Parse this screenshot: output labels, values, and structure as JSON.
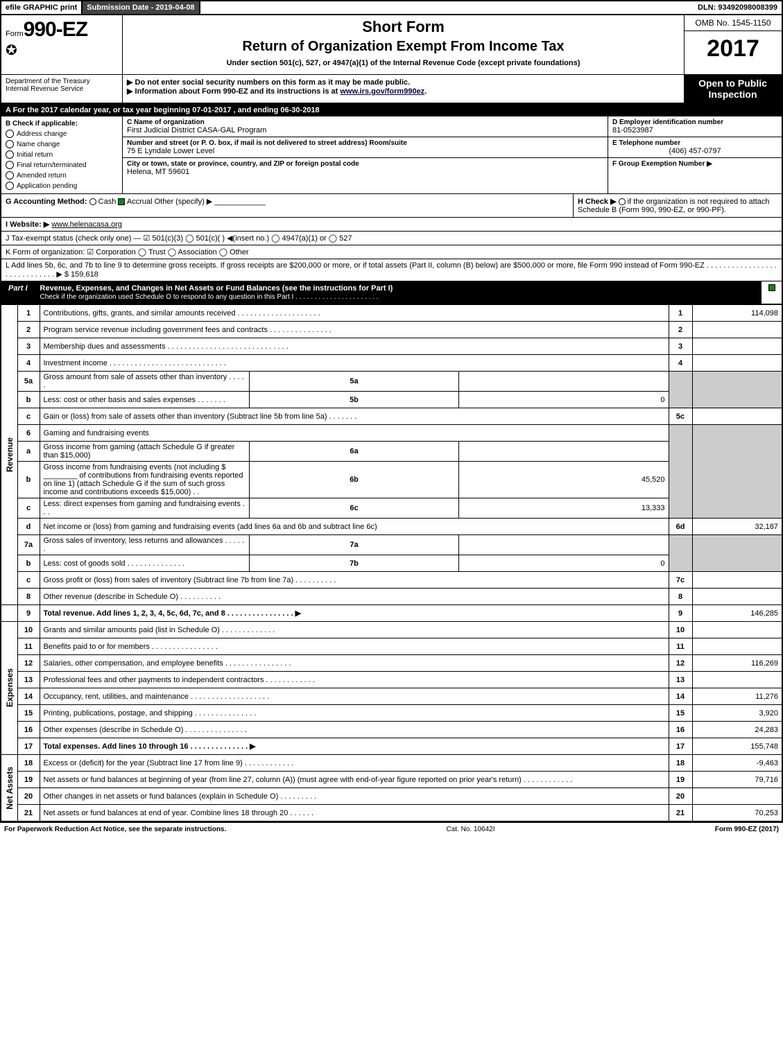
{
  "topbar": {
    "efile": "efile GRAPHIC print",
    "sub_label": "Submission Date - 2019-04-08",
    "dln": "DLN: 93492098008399"
  },
  "header": {
    "form_prefix": "Form",
    "form_no": "990-EZ",
    "short": "Short Form",
    "title": "Return of Organization Exempt From Income Tax",
    "sub1": "Under section 501(c), 527, or 4947(a)(1) of the Internal Revenue Code (except private foundations)",
    "sub2": "▶ Do not enter social security numbers on this form as it may be made public.",
    "sub3_pre": "▶ Information about Form 990-EZ and its instructions is at ",
    "sub3_link": "www.irs.gov/form990ez",
    "omb": "OMB No. 1545-1150",
    "year": "2017",
    "open1": "Open to Public",
    "open2": "Inspection",
    "dept1": "Department of the Treasury",
    "dept2": "Internal Revenue Service"
  },
  "A": {
    "text_pre": "A  For the 2017 calendar year, or tax year beginning ",
    "begin": "07-01-2017",
    "mid": ", and ending ",
    "end": "06-30-2018"
  },
  "B": {
    "label": "B  Check if applicable:",
    "items": [
      "Address change",
      "Name change",
      "Initial return",
      "Final return/terminated",
      "Amended return",
      "Application pending"
    ]
  },
  "C": {
    "label": "C Name of organization",
    "name": "First Judicial District CASA-GAL Program",
    "addr_label": "Number and street (or P. O. box, if mail is not delivered to street address)   Room/suite",
    "addr": "75 E Lyndale Lower Level",
    "city_label": "City or town, state or province, country, and ZIP or foreign postal code",
    "city": "Helena, MT  59601"
  },
  "D": {
    "label": "D Employer identification number",
    "val": "81-0523987"
  },
  "E": {
    "label": "E Telephone number",
    "val": "(406) 457-0797"
  },
  "F": {
    "label": "F Group Exemption Number  ▶"
  },
  "G": {
    "label": "G Accounting Method:",
    "cash": "Cash",
    "accrual": "Accrual",
    "other": "Other (specify) ▶"
  },
  "H": {
    "text1": "H   Check ▶",
    "text2": "if the organization is not required to attach Schedule B (Form 990, 990-EZ, or 990-PF)."
  },
  "I": {
    "label": "I Website: ▶",
    "val": "www.helenacasa.org"
  },
  "J": {
    "text": "J Tax-exempt status (check only one) — ☑ 501(c)(3)  ◯ 501(c)(  ) ◀(insert no.)  ◯ 4947(a)(1) or  ◯ 527"
  },
  "K": {
    "text": "K Form of organization:   ☑ Corporation  ◯ Trust  ◯ Association  ◯ Other"
  },
  "L": {
    "text": "L Add lines 5b, 6c, and 7b to line 9 to determine gross receipts. If gross receipts are $200,000 or more, or if total assets (Part II, column (B) below) are $500,000 or more, file Form 990 instead of Form 990-EZ . . . . . . . . . . . . . . . . . . . . . . . . . . . . . ▶ $ 159,618"
  },
  "part1": {
    "tab": "Part I",
    "title": "Revenue, Expenses, and Changes in Net Assets or Fund Balances (see the instructions for Part I)",
    "check_note": "Check if the organization used Schedule O to respond to any question in this Part I . . . . . . . . . . . . . . . . . . . . . ."
  },
  "side_labels": {
    "rev": "Revenue",
    "exp": "Expenses",
    "net": "Net Assets"
  },
  "lines": {
    "l1": {
      "n": "1",
      "d": "Contributions, gifts, grants, and similar amounts received . . . . . . . . . . . . . . . . . . . .",
      "ln": "1",
      "amt": "114,098"
    },
    "l2": {
      "n": "2",
      "d": "Program service revenue including government fees and contracts . . . . . . . . . . . . . . .",
      "ln": "2",
      "amt": ""
    },
    "l3": {
      "n": "3",
      "d": "Membership dues and assessments . . . . . . . . . . . . . . . . . . . . . . . . . . . . .",
      "ln": "3",
      "amt": ""
    },
    "l4": {
      "n": "4",
      "d": "Investment income . . . . . . . . . . . . . . . . . . . . . . . . . . . .",
      "ln": "4",
      "amt": ""
    },
    "l5a": {
      "n": "5a",
      "d": "Gross amount from sale of assets other than inventory . . . . .",
      "sn": "5a",
      "sv": ""
    },
    "l5b": {
      "n": "b",
      "d": "Less: cost or other basis and sales expenses . . . . . . .",
      "sn": "5b",
      "sv": "0"
    },
    "l5c": {
      "n": "c",
      "d": "Gain or (loss) from sale of assets other than inventory (Subtract line 5b from line 5a) . . . . . . .",
      "ln": "5c",
      "amt": ""
    },
    "l6": {
      "n": "6",
      "d": "Gaming and fundraising events"
    },
    "l6a": {
      "n": "a",
      "d": "Gross income from gaming (attach Schedule G if greater than $15,000)",
      "sn": "6a",
      "sv": ""
    },
    "l6b": {
      "n": "b",
      "d": "Gross income from fundraising events (not including $ ________ of contributions from fundraising events reported on line 1) (attach Schedule G if the sum of such gross income and contributions exceeds $15,000)   . .",
      "sn": "6b",
      "sv": "45,520"
    },
    "l6c": {
      "n": "c",
      "d": "Less: direct expenses from gaming and fundraising events       . . .",
      "sn": "6c",
      "sv": "13,333"
    },
    "l6d": {
      "n": "d",
      "d": "Net income or (loss) from gaming and fundraising events (add lines 6a and 6b and subtract line 6c)",
      "ln": "6d",
      "amt": "32,187"
    },
    "l7a": {
      "n": "7a",
      "d": "Gross sales of inventory, less returns and allowances . . . . . .",
      "sn": "7a",
      "sv": ""
    },
    "l7b": {
      "n": "b",
      "d": "Less: cost of goods sold       . . . . . . . . . . . . . .",
      "sn": "7b",
      "sv": "0"
    },
    "l7c": {
      "n": "c",
      "d": "Gross profit or (loss) from sales of inventory (Subtract line 7b from line 7a) . . . . . . . . . .",
      "ln": "7c",
      "amt": ""
    },
    "l8": {
      "n": "8",
      "d": "Other revenue (describe in Schedule O)             . . . . . . . . . .",
      "ln": "8",
      "amt": ""
    },
    "l9": {
      "n": "9",
      "d": "Total revenue. Add lines 1, 2, 3, 4, 5c, 6d, 7c, and 8 . . . . . . . . . . . . . . . . ▶",
      "ln": "9",
      "amt": "146,285"
    },
    "l10": {
      "n": "10",
      "d": "Grants and similar amounts paid (list in Schedule O)        . . . . . . . . . . . . .",
      "ln": "10",
      "amt": ""
    },
    "l11": {
      "n": "11",
      "d": "Benefits paid to or for members           . . . . . . . . . . . . . . . .",
      "ln": "11",
      "amt": ""
    },
    "l12": {
      "n": "12",
      "d": "Salaries, other compensation, and employee benefits . . . . . . . . . . . . . . . .",
      "ln": "12",
      "amt": "116,269"
    },
    "l13": {
      "n": "13",
      "d": "Professional fees and other payments to independent contractors . . . . . . . . . . . .",
      "ln": "13",
      "amt": ""
    },
    "l14": {
      "n": "14",
      "d": "Occupancy, rent, utilities, and maintenance . . . . . . . . . . . . . . . . . . .",
      "ln": "14",
      "amt": "11,276"
    },
    "l15": {
      "n": "15",
      "d": "Printing, publications, postage, and shipping         . . . . . . . . . . . . . . .",
      "ln": "15",
      "amt": "3,920"
    },
    "l16": {
      "n": "16",
      "d": "Other expenses (describe in Schedule O)          . . . . . . . . . . . . . . .",
      "ln": "16",
      "amt": "24,283"
    },
    "l17": {
      "n": "17",
      "d": "Total expenses. Add lines 10 through 16        . . . . . . . . . . . . . . ▶",
      "ln": "17",
      "amt": "155,748"
    },
    "l18": {
      "n": "18",
      "d": "Excess or (deficit) for the year (Subtract line 17 from line 9)      . . . . . . . . . . . .",
      "ln": "18",
      "amt": "-9,463"
    },
    "l19": {
      "n": "19",
      "d": "Net assets or fund balances at beginning of year (from line 27, column (A)) (must agree with end-of-year figure reported on prior year's return)         . . . . . . . . . . . .",
      "ln": "19",
      "amt": "79,716"
    },
    "l20": {
      "n": "20",
      "d": "Other changes in net assets or fund balances (explain in Schedule O)    . . . . . . . . .",
      "ln": "20",
      "amt": ""
    },
    "l21": {
      "n": "21",
      "d": "Net assets or fund balances at end of year. Combine lines 18 through 20      . . . . . .",
      "ln": "21",
      "amt": "70,253"
    }
  },
  "footer": {
    "left": "For Paperwork Reduction Act Notice, see the separate instructions.",
    "mid": "Cat. No. 10642I",
    "right": "Form 990-EZ (2017)"
  }
}
